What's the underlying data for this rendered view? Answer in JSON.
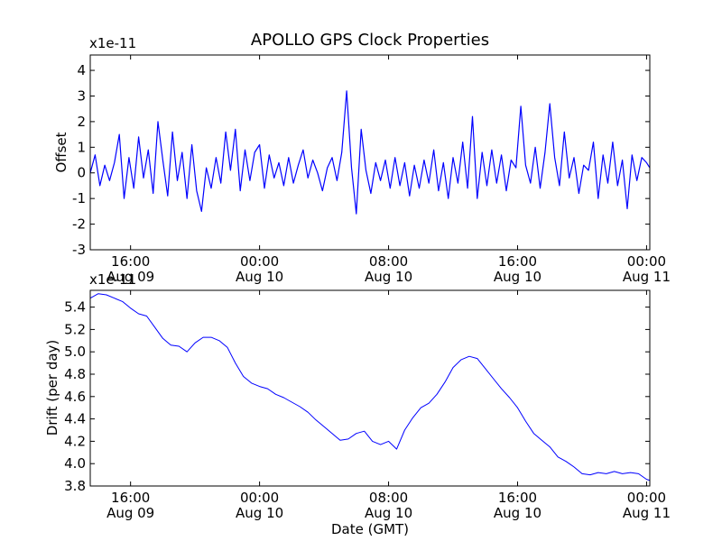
{
  "figure": {
    "title": "APOLLO GPS Clock Properties",
    "line_color": "#0000ff"
  },
  "chart_data": [
    {
      "type": "line",
      "name": "offset",
      "ylabel": "Offset",
      "xlabel": "",
      "y_multiplier": "x1e-11",
      "xlim_hours": [
        -10.5,
        24.2
      ],
      "ylim": [
        -3,
        4.6
      ],
      "yticks": [
        -3,
        -2,
        -1,
        0,
        1,
        2,
        3,
        4
      ],
      "ytick_labels": [
        "-3",
        "-2",
        "-1",
        "0",
        "1",
        "2",
        "3",
        "4"
      ],
      "xticks": [
        {
          "hour": -8,
          "time": "16:00",
          "date": "Aug 09"
        },
        {
          "hour": 0,
          "time": "00:00",
          "date": "Aug 10"
        },
        {
          "hour": 8,
          "time": "08:00",
          "date": "Aug 10"
        },
        {
          "hour": 16,
          "time": "16:00",
          "date": "Aug 10"
        },
        {
          "hour": 24,
          "time": "00:00",
          "date": "Aug 11"
        }
      ],
      "series": [
        {
          "name": "Offset",
          "x_hours": [
            -10.5,
            -10.2,
            -9.9,
            -9.6,
            -9.3,
            -9.0,
            -8.7,
            -8.4,
            -8.1,
            -7.8,
            -7.5,
            -7.2,
            -6.9,
            -6.6,
            -6.3,
            -6.0,
            -5.7,
            -5.4,
            -5.1,
            -4.8,
            -4.5,
            -4.2,
            -3.9,
            -3.6,
            -3.3,
            -3.0,
            -2.7,
            -2.4,
            -2.1,
            -1.8,
            -1.5,
            -1.2,
            -0.9,
            -0.6,
            -0.3,
            0.0,
            0.3,
            0.6,
            0.9,
            1.2,
            1.5,
            1.8,
            2.1,
            2.4,
            2.7,
            3.0,
            3.3,
            3.6,
            3.9,
            4.2,
            4.5,
            4.8,
            5.1,
            5.4,
            5.7,
            6.0,
            6.3,
            6.6,
            6.9,
            7.2,
            7.5,
            7.8,
            8.1,
            8.4,
            8.7,
            9.0,
            9.3,
            9.6,
            9.9,
            10.2,
            10.5,
            10.8,
            11.1,
            11.4,
            11.7,
            12.0,
            12.3,
            12.6,
            12.9,
            13.2,
            13.5,
            13.8,
            14.1,
            14.4,
            14.7,
            15.0,
            15.3,
            15.6,
            15.9,
            16.2,
            16.5,
            16.8,
            17.1,
            17.4,
            17.7,
            18.0,
            18.3,
            18.6,
            18.9,
            19.2,
            19.5,
            19.8,
            20.1,
            20.4,
            20.7,
            21.0,
            21.3,
            21.6,
            21.9,
            22.2,
            22.5,
            22.8,
            23.1,
            23.4,
            23.7,
            24.0,
            24.2
          ],
          "y": [
            0.0,
            0.7,
            -0.5,
            0.3,
            -0.3,
            0.4,
            1.5,
            -1.0,
            0.6,
            -0.6,
            1.4,
            -0.2,
            0.9,
            -0.8,
            2.0,
            0.5,
            -0.9,
            1.6,
            -0.3,
            0.8,
            -1.0,
            1.1,
            -0.7,
            -1.5,
            0.2,
            -0.6,
            0.6,
            -0.4,
            1.6,
            0.1,
            1.7,
            -0.7,
            0.9,
            -0.3,
            0.8,
            1.1,
            -0.6,
            0.7,
            -0.2,
            0.4,
            -0.5,
            0.6,
            -0.4,
            0.3,
            0.9,
            -0.2,
            0.5,
            0.0,
            -0.7,
            0.2,
            0.6,
            -0.3,
            0.8,
            3.2,
            0.2,
            -1.6,
            1.7,
            0.1,
            -0.8,
            0.4,
            -0.3,
            0.5,
            -0.6,
            0.6,
            -0.5,
            0.4,
            -0.9,
            0.3,
            -0.6,
            0.5,
            -0.4,
            0.9,
            -0.7,
            0.4,
            -1.0,
            0.6,
            -0.4,
            1.2,
            -0.6,
            2.2,
            -1.0,
            0.8,
            -0.5,
            0.9,
            -0.4,
            0.7,
            -0.7,
            0.5,
            0.2,
            2.6,
            0.3,
            -0.4,
            1.0,
            -0.6,
            0.8,
            2.7,
            0.6,
            -0.5,
            1.6,
            -0.2,
            0.6,
            -0.8,
            0.3,
            0.1,
            1.2,
            -1.0,
            0.7,
            -0.4,
            1.2,
            -0.5,
            0.5,
            -1.4,
            0.7,
            -0.3,
            0.6,
            0.4,
            0.2
          ]
        }
      ]
    },
    {
      "type": "line",
      "name": "drift",
      "ylabel": "Drift (per day)",
      "xlabel": "Date (GMT)",
      "y_multiplier": "x1e-11",
      "xlim_hours": [
        -10.5,
        24.2
      ],
      "ylim": [
        3.8,
        5.55
      ],
      "yticks": [
        3.8,
        4.0,
        4.2,
        4.4,
        4.6,
        4.8,
        5.0,
        5.2,
        5.4
      ],
      "ytick_labels": [
        "3.8",
        "4.0",
        "4.2",
        "4.4",
        "4.6",
        "4.8",
        "5.0",
        "5.2",
        "5.4"
      ],
      "xticks": [
        {
          "hour": -8,
          "time": "16:00",
          "date": "Aug 09"
        },
        {
          "hour": 0,
          "time": "00:00",
          "date": "Aug 10"
        },
        {
          "hour": 8,
          "time": "08:00",
          "date": "Aug 10"
        },
        {
          "hour": 16,
          "time": "16:00",
          "date": "Aug 10"
        },
        {
          "hour": 24,
          "time": "00:00",
          "date": "Aug 11"
        }
      ],
      "series": [
        {
          "name": "Drift",
          "x_hours": [
            -10.5,
            -10.0,
            -9.5,
            -9.0,
            -8.5,
            -8.0,
            -7.5,
            -7.0,
            -6.5,
            -6.0,
            -5.5,
            -5.0,
            -4.5,
            -4.0,
            -3.5,
            -3.0,
            -2.5,
            -2.0,
            -1.5,
            -1.0,
            -0.5,
            0.0,
            0.5,
            1.0,
            1.5,
            2.0,
            2.5,
            3.0,
            3.5,
            4.0,
            4.5,
            5.0,
            5.5,
            6.0,
            6.5,
            7.0,
            7.5,
            8.0,
            8.5,
            9.0,
            9.5,
            10.0,
            10.5,
            11.0,
            11.5,
            12.0,
            12.5,
            13.0,
            13.5,
            14.0,
            14.5,
            15.0,
            15.5,
            16.0,
            16.5,
            17.0,
            17.5,
            18.0,
            18.5,
            19.0,
            19.5,
            20.0,
            20.5,
            21.0,
            21.5,
            22.0,
            22.5,
            23.0,
            23.5,
            24.0,
            24.2
          ],
          "y": [
            5.48,
            5.52,
            5.51,
            5.48,
            5.45,
            5.39,
            5.34,
            5.32,
            5.22,
            5.12,
            5.06,
            5.05,
            5.0,
            5.08,
            5.13,
            5.13,
            5.1,
            5.04,
            4.9,
            4.78,
            4.72,
            4.69,
            4.67,
            4.62,
            4.59,
            4.55,
            4.51,
            4.46,
            4.39,
            4.33,
            4.27,
            4.21,
            4.22,
            4.27,
            4.29,
            4.2,
            4.17,
            4.2,
            4.13,
            4.3,
            4.41,
            4.5,
            4.54,
            4.62,
            4.73,
            4.86,
            4.93,
            4.96,
            4.94,
            4.85,
            4.76,
            4.67,
            4.59,
            4.5,
            4.38,
            4.27,
            4.21,
            4.15,
            4.06,
            4.02,
            3.97,
            3.91,
            3.9,
            3.92,
            3.91,
            3.93,
            3.91,
            3.92,
            3.91,
            3.86,
            3.85
          ]
        }
      ]
    }
  ]
}
